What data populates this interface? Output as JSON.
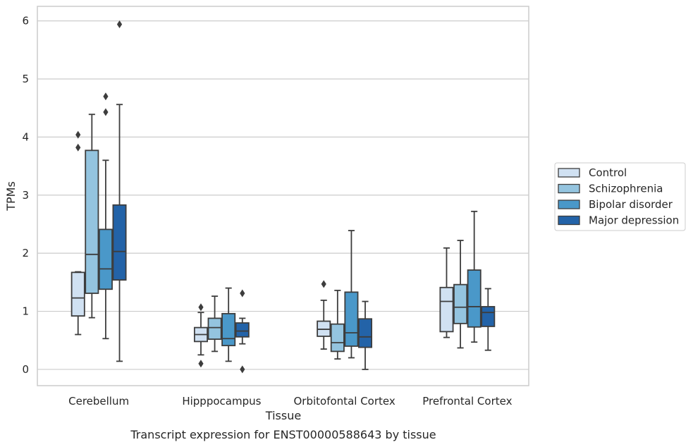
{
  "chart_data": {
    "type": "box",
    "title": "",
    "caption": "Transcript expression for ENST00000588643 by tissue",
    "xlabel": "Tissue",
    "ylabel": "TPMs",
    "ylim": [
      -0.28,
      6.25
    ],
    "yticks": [
      "0",
      "1",
      "2",
      "3",
      "4",
      "5",
      "6"
    ],
    "categories": [
      "Cerebellum",
      "Hipppocampus",
      "Orbitofontal Cortex",
      "Prefrontal Cortex"
    ],
    "grid": "horizontal",
    "legend_position": "right",
    "series": [
      {
        "name": "Control",
        "color": "#d0e1f2",
        "boxes": [
          {
            "whislo": 0.6,
            "q1": 0.92,
            "med": 1.23,
            "q3": 1.67,
            "whishi": 1.68,
            "fliers": [
              3.82,
              4.04
            ]
          },
          {
            "whislo": 0.25,
            "q1": 0.48,
            "med": 0.6,
            "q3": 0.72,
            "whishi": 0.98,
            "fliers": [
              0.1,
              1.07
            ]
          },
          {
            "whislo": 0.35,
            "q1": 0.57,
            "med": 0.69,
            "q3": 0.83,
            "whishi": 1.19,
            "fliers": [
              1.47
            ]
          },
          {
            "whislo": 0.55,
            "q1": 0.65,
            "med": 1.17,
            "q3": 1.41,
            "whishi": 2.09,
            "fliers": []
          }
        ]
      },
      {
        "name": "Schizophrenia",
        "color": "#94c4df",
        "boxes": [
          {
            "whislo": 0.89,
            "q1": 1.31,
            "med": 1.98,
            "q3": 3.77,
            "whishi": 4.39,
            "fliers": []
          },
          {
            "whislo": 0.31,
            "q1": 0.52,
            "med": 0.72,
            "q3": 0.88,
            "whishi": 1.26,
            "fliers": []
          },
          {
            "whislo": 0.18,
            "q1": 0.31,
            "med": 0.46,
            "q3": 0.78,
            "whishi": 1.36,
            "fliers": []
          },
          {
            "whislo": 0.37,
            "q1": 0.79,
            "med": 1.07,
            "q3": 1.46,
            "whishi": 2.22,
            "fliers": []
          }
        ]
      },
      {
        "name": "Bipolar disorder",
        "color": "#4a98c9",
        "boxes": [
          {
            "whislo": 0.53,
            "q1": 1.38,
            "med": 1.73,
            "q3": 2.41,
            "whishi": 3.6,
            "fliers": [
              4.43,
              4.7
            ]
          },
          {
            "whislo": 0.14,
            "q1": 0.41,
            "med": 0.53,
            "q3": 0.96,
            "whishi": 1.4,
            "fliers": []
          },
          {
            "whislo": 0.2,
            "q1": 0.4,
            "med": 0.63,
            "q3": 1.33,
            "whishi": 2.39,
            "fliers": []
          },
          {
            "whislo": 0.47,
            "q1": 0.73,
            "med": 1.08,
            "q3": 1.71,
            "whishi": 2.72,
            "fliers": []
          }
        ]
      },
      {
        "name": "Major depression",
        "color": "#2363a8",
        "boxes": [
          {
            "whislo": 0.14,
            "q1": 1.54,
            "med": 2.03,
            "q3": 2.83,
            "whishi": 4.56,
            "fliers": [
              5.94
            ]
          },
          {
            "whislo": 0.44,
            "q1": 0.56,
            "med": 0.66,
            "q3": 0.8,
            "whishi": 0.88,
            "fliers": [
              0.0,
              1.31
            ]
          },
          {
            "whislo": 0.0,
            "q1": 0.38,
            "med": 0.56,
            "q3": 0.87,
            "whishi": 1.17,
            "fliers": []
          },
          {
            "whislo": 0.33,
            "q1": 0.74,
            "med": 0.98,
            "q3": 1.08,
            "whishi": 1.39,
            "fliers": []
          }
        ]
      }
    ]
  }
}
